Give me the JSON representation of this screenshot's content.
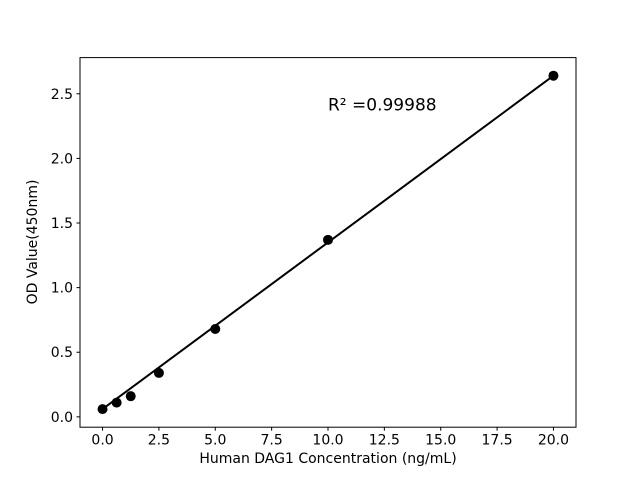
{
  "figure": {
    "background": "#ffffff"
  },
  "chart_data": {
    "type": "scatter",
    "title": "",
    "xlabel": "Human DAG1 Concentration (ng/mL)",
    "ylabel": "OD Value(450nm)",
    "annotation": {
      "text": "R² =0.99988",
      "x": 10.0,
      "y": 2.37
    },
    "points": {
      "x": [
        0,
        0.625,
        1.25,
        2.5,
        5,
        10,
        20
      ],
      "y": [
        0.06,
        0.11,
        0.16,
        0.34,
        0.68,
        1.37,
        2.64
      ]
    },
    "fit_line": {
      "x": [
        0,
        20
      ],
      "y": [
        0.06,
        2.64
      ]
    },
    "x_ticks": {
      "values": [
        0,
        2.5,
        5,
        7.5,
        10,
        12.5,
        15,
        17.5,
        20
      ],
      "labels": [
        "0.0",
        "2.5",
        "5.0",
        "7.5",
        "10.0",
        "12.5",
        "15.0",
        "17.5",
        "20.0"
      ]
    },
    "y_ticks": {
      "values": [
        0,
        0.5,
        1.0,
        1.5,
        2.0,
        2.5
      ],
      "labels": [
        "0.0",
        "0.5",
        "1.0",
        "1.5",
        "2.0",
        "2.5"
      ]
    },
    "xlim": [
      -1,
      21
    ],
    "ylim": [
      -0.08,
      2.78
    ],
    "grid": false,
    "legend": null,
    "marker_color": "#000000",
    "line_color": "#000000",
    "axis_color": "#000000",
    "text_color": "#000000",
    "plot_background": "#ffffff"
  }
}
